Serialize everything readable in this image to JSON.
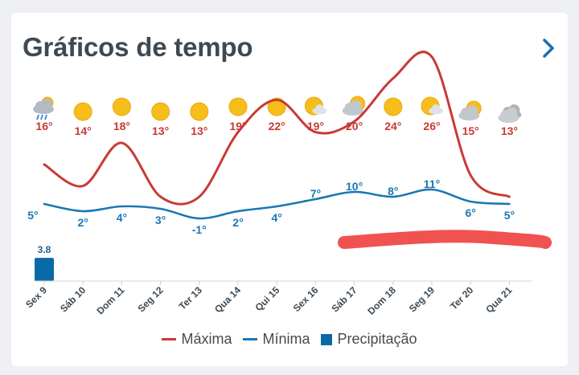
{
  "header": {
    "title": "Gráficos de tempo",
    "next_icon": "chevron-right-icon"
  },
  "colors": {
    "max": "#c93a34",
    "min": "#1a78b4",
    "precip": "#0a6aa8",
    "redaction": "#f05250",
    "sun": "#f6bd1b",
    "cloud": "#b9bfc6"
  },
  "days": [
    {
      "label": "Sex 9",
      "icon": "rain-cloud-icon",
      "max": 16,
      "min": 5,
      "max_label": "16°",
      "min_label": "5°",
      "precip": 3.8,
      "precip_label": "3.8"
    },
    {
      "label": "Sáb 10",
      "icon": "sun-icon",
      "max": 14,
      "min": 2,
      "max_label": "14°",
      "min_label": "2°",
      "precip": 0
    },
    {
      "label": "Dom 11",
      "icon": "sun-icon",
      "max": 18,
      "min": 4,
      "max_label": "18°",
      "min_label": "4°",
      "precip": 0
    },
    {
      "label": "Seg 12",
      "icon": "sun-icon",
      "max": 13,
      "min": 3,
      "max_label": "13°",
      "min_label": "3°",
      "precip": 0
    },
    {
      "label": "Ter 13",
      "icon": "sun-icon",
      "max": 13,
      "min": -1,
      "max_label": "13°",
      "min_label": "-1°",
      "precip": 0
    },
    {
      "label": "Qua 14",
      "icon": "sun-icon",
      "max": 19,
      "min": 2,
      "max_label": "19°",
      "min_label": "2°",
      "precip": 0
    },
    {
      "label": "Qui 15",
      "icon": "sun-icon",
      "max": 22,
      "min": 4,
      "max_label": "22°",
      "min_label": "4°",
      "precip": 0
    },
    {
      "label": "Sex 16",
      "icon": "sun-small-cloud-icon",
      "max": 19,
      "min": 7,
      "max_label": "19°",
      "min_label": "7°",
      "precip": 0
    },
    {
      "label": "Sáb 17",
      "icon": "partly-cloudy-icon",
      "max": 20,
      "min": 10,
      "max_label": "20°",
      "min_label": "10°",
      "precip": 0
    },
    {
      "label": "Dom 18",
      "icon": "sun-icon",
      "max": 24,
      "min": 8,
      "max_label": "24°",
      "min_label": "8°",
      "precip": 0
    },
    {
      "label": "Seg 19",
      "icon": "sun-small-cloud-icon",
      "max": 26,
      "min": 11,
      "max_label": "26°",
      "min_label": "11°",
      "precip": 0
    },
    {
      "label": "Ter 20",
      "icon": "partly-cloudy-icon",
      "max": 15,
      "min": 6,
      "max_label": "15°",
      "min_label": "6°",
      "precip": 0
    },
    {
      "label": "Qua 21",
      "icon": "cloud-icon",
      "max": 13,
      "min": 5,
      "max_label": "13°",
      "min_label": "5°",
      "precip": 0
    }
  ],
  "legend": {
    "max": "Máxima",
    "min": "Mínima",
    "precip": "Precipitação"
  },
  "chart_data": {
    "type": "line",
    "categories": [
      "Sex 9",
      "Sáb 10",
      "Dom 11",
      "Seg 12",
      "Ter 13",
      "Qua 14",
      "Qui 15",
      "Sex 16",
      "Sáb 17",
      "Dom 18",
      "Seg 19",
      "Ter 20",
      "Qua 21"
    ],
    "series": [
      {
        "name": "Máxima",
        "values": [
          16,
          14,
          18,
          13,
          13,
          19,
          22,
          19,
          20,
          24,
          26,
          15,
          13
        ]
      },
      {
        "name": "Mínima",
        "values": [
          5,
          2,
          4,
          3,
          -1,
          2,
          4,
          7,
          10,
          8,
          11,
          6,
          5
        ]
      },
      {
        "name": "Precipitação",
        "type": "bar",
        "values": [
          3.8,
          0,
          0,
          0,
          0,
          0,
          0,
          0,
          0,
          0,
          0,
          0,
          0
        ]
      }
    ],
    "legend_position": "bottom-center",
    "grid": false
  }
}
